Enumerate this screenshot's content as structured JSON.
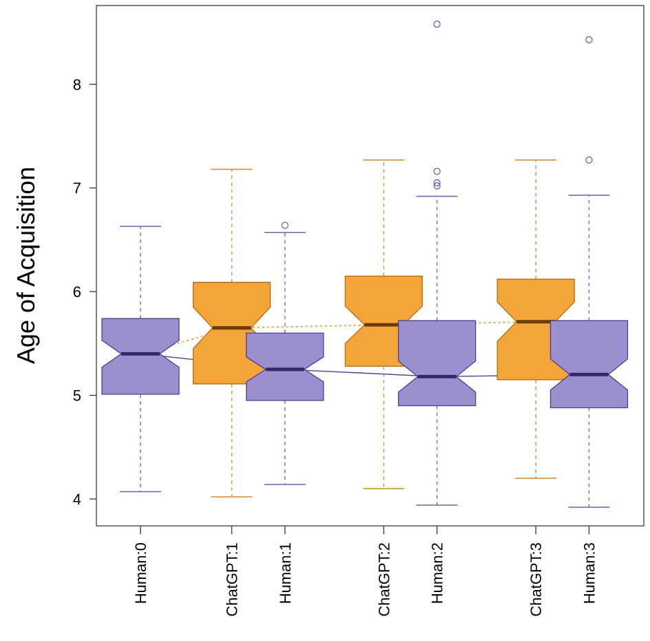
{
  "chart_data": {
    "type": "boxplot",
    "ylabel": "Age of Acquisition",
    "xlabel": "",
    "ylim": [
      3.74,
      8.76
    ],
    "yticks": [
      4,
      5,
      6,
      7,
      8
    ],
    "ytick_labels": [
      "4",
      "5",
      "6",
      "7",
      "8"
    ],
    "grid": false,
    "notched": true,
    "series_colors": {
      "Human": {
        "fill": "#9b8fd0",
        "stroke": "#4b3f8f",
        "median": "#35286b"
      },
      "ChatGPT": {
        "fill": "#f4a53a",
        "stroke": "#b26d10",
        "median": "#6b3a08"
      }
    },
    "boxes": [
      {
        "label": "Human:0",
        "series": "Human",
        "x": 1,
        "whisker_low": 4.07,
        "q1": 5.01,
        "median": 5.4,
        "q3": 5.74,
        "whisker_high": 6.63,
        "notch": [
          5.27,
          5.53
        ],
        "outliers": []
      },
      {
        "label": "ChatGPT:1",
        "series": "ChatGPT",
        "x": 2.2,
        "whisker_low": 4.02,
        "q1": 5.11,
        "median": 5.65,
        "q3": 6.09,
        "whisker_high": 7.18,
        "notch": [
          5.45,
          5.85
        ],
        "outliers": []
      },
      {
        "label": "Human:1",
        "series": "Human",
        "x": 2.9,
        "whisker_low": 4.14,
        "q1": 4.95,
        "median": 5.25,
        "q3": 5.6,
        "whisker_high": 6.57,
        "notch": [
          5.13,
          5.37
        ],
        "outliers": [
          6.64
        ]
      },
      {
        "label": "ChatGPT:2",
        "series": "ChatGPT",
        "x": 4.2,
        "whisker_low": 4.1,
        "q1": 5.28,
        "median": 5.68,
        "q3": 6.15,
        "whisker_high": 7.27,
        "notch": [
          5.5,
          5.86
        ],
        "outliers": []
      },
      {
        "label": "Human:2",
        "series": "Human",
        "x": 4.9,
        "whisker_low": 3.94,
        "q1": 4.9,
        "median": 5.18,
        "q3": 5.72,
        "whisker_high": 6.92,
        "notch": [
          5.03,
          5.33
        ],
        "outliers": [
          7.02,
          7.05,
          7.16,
          8.58
        ]
      },
      {
        "label": "ChatGPT:3",
        "series": "ChatGPT",
        "x": 6.2,
        "whisker_low": 4.2,
        "q1": 5.15,
        "median": 5.71,
        "q3": 6.12,
        "whisker_high": 7.27,
        "notch": [
          5.52,
          5.9
        ],
        "outliers": []
      },
      {
        "label": "Human:3",
        "series": "Human",
        "x": 6.9,
        "whisker_low": 3.92,
        "q1": 4.88,
        "median": 5.2,
        "q3": 5.72,
        "whisker_high": 6.93,
        "notch": [
          5.05,
          5.35
        ],
        "outliers": [
          7.27,
          8.43
        ]
      }
    ],
    "trend_lines": [
      {
        "series": "ChatGPT",
        "style": "dotted",
        "x": [
          1,
          2.2,
          4.2,
          6.2
        ],
        "y": [
          5.4,
          5.65,
          5.68,
          5.71
        ]
      },
      {
        "series": "Human",
        "style": "solid",
        "x": [
          1,
          2.9,
          4.9,
          6.9
        ],
        "y": [
          5.4,
          5.25,
          5.18,
          5.2
        ]
      }
    ],
    "xlim": [
      0.42,
      7.62
    ]
  }
}
